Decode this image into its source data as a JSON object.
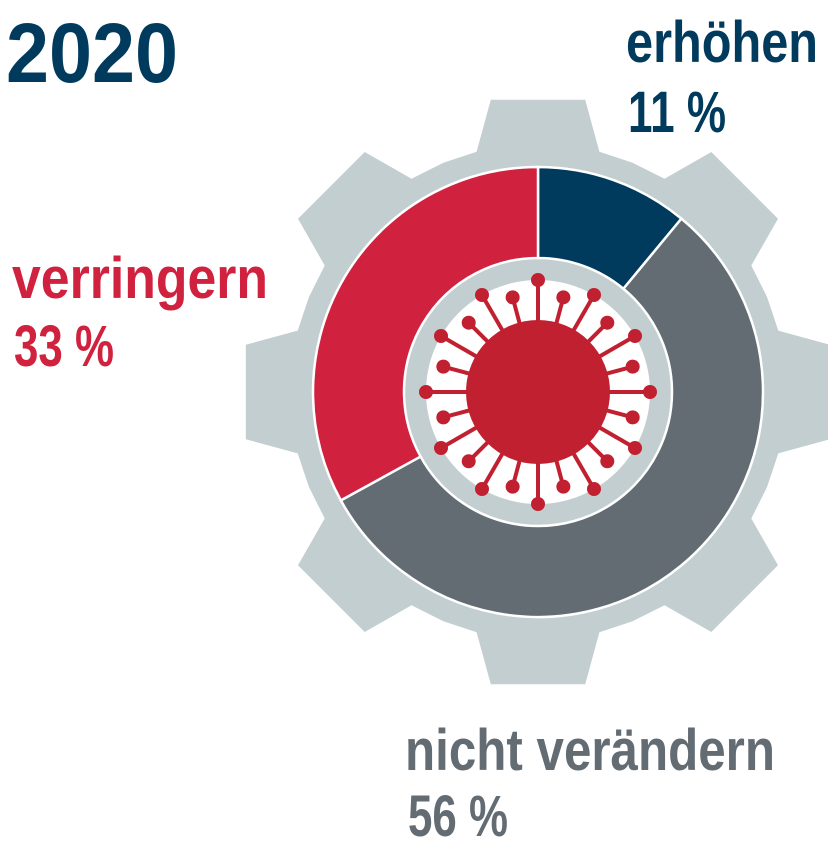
{
  "chart_data": {
    "type": "donut",
    "title": "2020",
    "categories": [
      "erhöhen",
      "nicht verändern",
      "verringern"
    ],
    "values": [
      11,
      56,
      33
    ],
    "value_labels": [
      "11 %",
      "56 %",
      "33 %"
    ],
    "colors": [
      "#003a5c",
      "#636b73",
      "#d0213f"
    ]
  }
}
